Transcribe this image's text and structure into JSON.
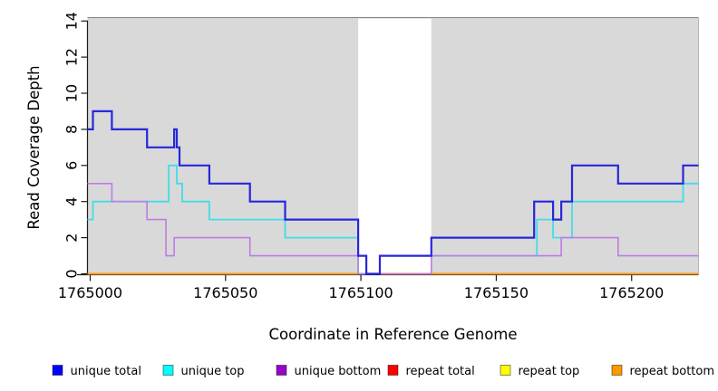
{
  "chart_data": {
    "type": "line",
    "subtype": "step-coverage-plot",
    "title": "",
    "xlabel": "Coordinate in Reference Genome",
    "ylabel": "Read Coverage Depth",
    "xlim": [
      1764999,
      1765224.7
    ],
    "ylim": [
      0,
      14
    ],
    "x_ticks": [
      1765000,
      1765050,
      1765100,
      1765150,
      1765200
    ],
    "y_ticks": [
      0,
      2,
      4,
      6,
      8,
      10,
      12,
      14
    ],
    "grid": false,
    "panel_background": "#d9d9d9",
    "masked_region": {
      "x1": 1765099,
      "x2": 1765126,
      "color": "#ffffff"
    },
    "series": [
      {
        "name": "repeat total",
        "color": "#d81e2c",
        "width": 1.6,
        "points": [
          [
            1764999,
            0
          ]
        ],
        "end": 1765224.7
      },
      {
        "name": "repeat top",
        "color": "#f2e41f",
        "width": 1.6,
        "points": [
          [
            1764999,
            0
          ]
        ],
        "end": 1765224.7
      },
      {
        "name": "repeat bottom",
        "color": "#ff9714",
        "width": 2.0,
        "points": [
          [
            1764999,
            0
          ]
        ],
        "end": 1765224.7
      },
      {
        "name": "unique top",
        "color": "#41dde8",
        "width": 1.8,
        "points": [
          [
            1764999,
            3
          ],
          [
            1765001,
            4
          ],
          [
            1765029,
            6
          ],
          [
            1765032,
            5
          ],
          [
            1765034,
            4
          ],
          [
            1765044,
            3
          ],
          [
            1765072,
            2
          ],
          [
            1765099,
            0
          ],
          [
            1765107,
            1
          ],
          [
            1765165,
            3
          ],
          [
            1765171,
            2
          ],
          [
            1765178,
            4
          ],
          [
            1765219,
            5
          ]
        ],
        "end": 1765224.7
      },
      {
        "name": "unique bottom",
        "color": "#bd7ce6",
        "width": 1.6,
        "points": [
          [
            1764999,
            5
          ],
          [
            1765008,
            4
          ],
          [
            1765021,
            3
          ],
          [
            1765028,
            1
          ],
          [
            1765031,
            2
          ],
          [
            1765059,
            1
          ],
          [
            1765099,
            0
          ],
          [
            1765126,
            1
          ],
          [
            1765174,
            2
          ],
          [
            1765195,
            1
          ]
        ],
        "end": 1765224.7
      },
      {
        "name": "unique total",
        "color": "#2727dc",
        "width": 2.2,
        "points": [
          [
            1764999,
            8
          ],
          [
            1765001,
            9
          ],
          [
            1765008,
            8
          ],
          [
            1765021,
            7
          ],
          [
            1765031,
            8
          ],
          [
            1765032,
            7
          ],
          [
            1765033,
            6
          ],
          [
            1765044,
            5
          ],
          [
            1765059,
            4
          ],
          [
            1765072,
            3
          ],
          [
            1765099,
            1
          ],
          [
            1765102,
            0
          ],
          [
            1765107,
            1
          ],
          [
            1765126,
            2
          ],
          [
            1765164,
            4
          ],
          [
            1765171,
            3
          ],
          [
            1765174,
            4
          ],
          [
            1765178,
            6
          ],
          [
            1765195,
            5
          ],
          [
            1765219,
            6
          ]
        ],
        "end": 1765224.7
      }
    ],
    "legend": {
      "position": "bottom",
      "items": [
        {
          "label": "unique total",
          "swatch_color": "#0000ff"
        },
        {
          "label": "unique top",
          "swatch_color": "#00ffff"
        },
        {
          "label": "unique bottom",
          "swatch_color": "#9900cc"
        },
        {
          "label": "repeat total",
          "swatch_color": "#ff0000"
        },
        {
          "label": "repeat top",
          "swatch_color": "#ffff00"
        },
        {
          "label": "repeat bottom",
          "swatch_color": "#ff9900"
        }
      ]
    }
  }
}
